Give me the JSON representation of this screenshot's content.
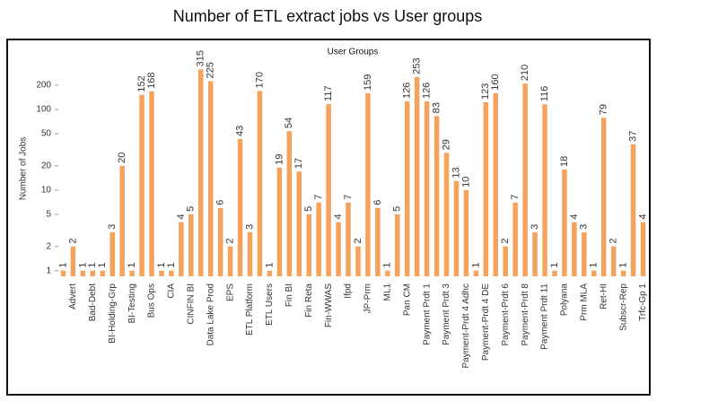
{
  "chart_data": {
    "type": "bar",
    "title": "Number of ETL extract jobs vs User groups",
    "subtitle": "User Groups",
    "ylabel": "Number of Jobs",
    "categories": [
      null,
      "Advert",
      null,
      "Bad-Debt",
      null,
      "BI-Holding-Grp",
      null,
      "BI-Testing",
      null,
      "Bus Ops",
      null,
      "CIA",
      null,
      "CINFIN BI",
      null,
      "Data Lake Prod",
      null,
      "EPS",
      null,
      "ETL Platform",
      null,
      "ETL Users",
      null,
      "Fin BI",
      null,
      "Fin Reta",
      null,
      "Fin-WWAS",
      null,
      "Ifpd",
      null,
      "JP-Prm",
      null,
      "ML1",
      null,
      "Pan CM",
      null,
      "Payment Prdt 1",
      null,
      "Payment Prdt 3",
      null,
      "Payment-Prdt 4 Adhc",
      null,
      "Payment-Prdt 4 DE",
      null,
      "Payment-Prdt 6",
      null,
      "Payment-Prdt 8",
      null,
      "Payment Prdt 11",
      null,
      "Polyana",
      null,
      "Prm MLA",
      null,
      "Ret-HI",
      null,
      "Subscr-Rep",
      null,
      "Trfc-Gp 1"
    ],
    "values": [
      1,
      2,
      1,
      1,
      1,
      3,
      20,
      1,
      152,
      168,
      1,
      1,
      4,
      5,
      315,
      225,
      6,
      2,
      43,
      3,
      170,
      1,
      19,
      54,
      17,
      5,
      7,
      117,
      4,
      7,
      2,
      159,
      6,
      1,
      5,
      126,
      253,
      126,
      83,
      29,
      13,
      10,
      1,
      123,
      160,
      2,
      7,
      210,
      3,
      116,
      1,
      18,
      4,
      3,
      1,
      79,
      2,
      1,
      37,
      4
    ],
    "color": "#f5a25d",
    "log_scale": true,
    "ylim": [
      0.85,
      400
    ],
    "yticks": [
      1,
      2,
      5,
      10,
      20,
      50,
      100,
      200
    ],
    "grid": false
  }
}
